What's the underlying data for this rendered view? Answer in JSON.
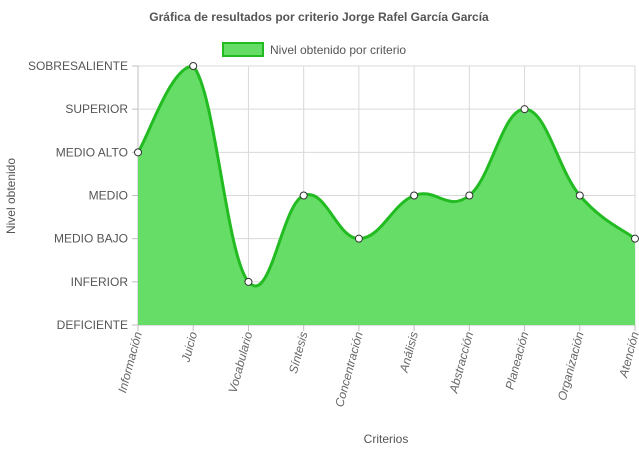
{
  "chart_data": {
    "type": "area",
    "title": "Gráfica de resultados por criterio Jorge Rafel García García",
    "xlabel": "Criterios",
    "ylabel": "Nivel obtenido",
    "categories": [
      "Información",
      "Juicio",
      "Vocabulario",
      "Síntesis",
      "Concentración",
      "Análisis",
      "Abstracción",
      "Planeación",
      "Organización",
      "Atención"
    ],
    "y_levels": [
      "DEFICIENTE",
      "INFERIOR",
      "MEDIO BAJO",
      "MEDIO",
      "MEDIO ALTO",
      "SUPERIOR",
      "SOBRESALIENTE"
    ],
    "ylim": [
      0,
      6
    ],
    "series": [
      {
        "name": "Nivel obtenido por criterio",
        "values": [
          4,
          6,
          1,
          3,
          2,
          3,
          3,
          5,
          3,
          2
        ],
        "fill_color": "#66dd66",
        "line_color": "#22bb22"
      }
    ],
    "legend": "top-center",
    "grid": true,
    "smooth": true
  }
}
